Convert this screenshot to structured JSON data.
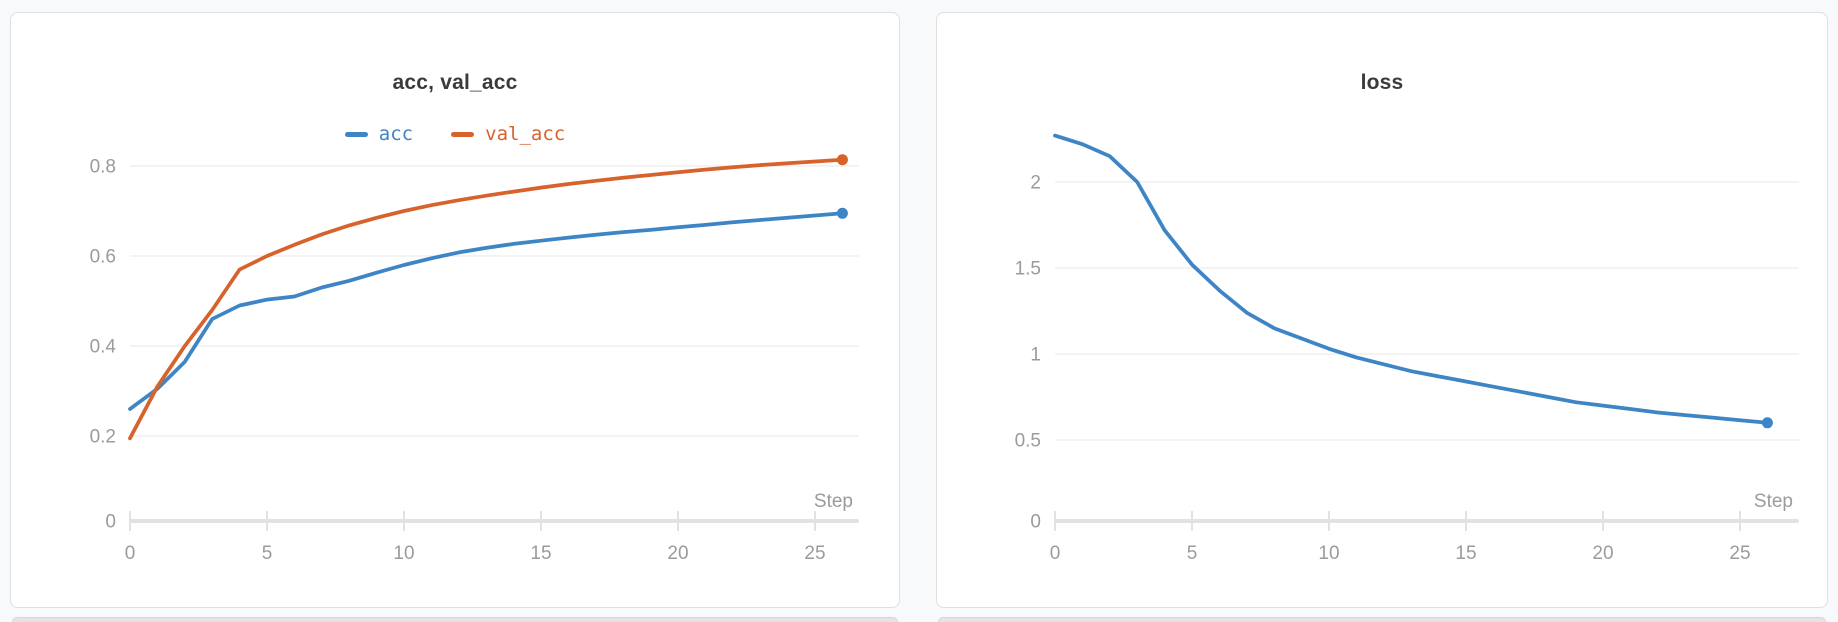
{
  "panel_colors": {
    "background": "#f8f9fa",
    "card": "#ffffff",
    "card_border": "#dfdfdf",
    "gridline": "#ececec",
    "axis_bar": "#e2e2e2",
    "tick_text": "#9b9b9b",
    "title_text": "#3b3b3b"
  },
  "chart_data": [
    {
      "type": "line",
      "title": "acc, val_acc",
      "xlabel": "Step",
      "grid": true,
      "legend_visible": true,
      "legend_position": "top-center",
      "x": [
        0,
        1,
        2,
        3,
        4,
        5,
        6,
        7,
        8,
        9,
        10,
        11,
        12,
        13,
        14,
        15,
        16,
        17,
        18,
        19,
        20,
        21,
        22,
        23,
        24,
        25,
        26
      ],
      "xticks": [
        0,
        5,
        10,
        15,
        20,
        25
      ],
      "xlim": [
        0,
        27
      ],
      "ylim": [
        0,
        0.9
      ],
      "yticks": [
        0,
        0.2,
        0.4,
        0.6,
        0.8
      ],
      "ytick_labels": [
        "0",
        "0.2",
        "0.4",
        "0.6",
        "0.8"
      ],
      "series": [
        {
          "name": "acc",
          "color": "#3e85c6",
          "end_marker": true,
          "values": [
            0.26,
            0.305,
            0.365,
            0.46,
            0.49,
            0.503,
            0.51,
            0.53,
            0.545,
            0.563,
            0.58,
            0.595,
            0.608,
            0.618,
            0.627,
            0.634,
            0.641,
            0.647,
            0.653,
            0.658,
            0.664,
            0.669,
            0.675,
            0.68,
            0.685,
            0.69,
            0.695
          ]
        },
        {
          "name": "val_acc",
          "color": "#d8622c",
          "end_marker": true,
          "values": [
            0.195,
            0.31,
            0.4,
            0.48,
            0.57,
            0.6,
            0.625,
            0.648,
            0.668,
            0.685,
            0.7,
            0.713,
            0.724,
            0.734,
            0.743,
            0.752,
            0.76,
            0.767,
            0.774,
            0.78,
            0.786,
            0.792,
            0.797,
            0.802,
            0.806,
            0.81,
            0.814
          ]
        }
      ]
    },
    {
      "type": "line",
      "title": "loss",
      "xlabel": "Step",
      "grid": true,
      "legend_visible": false,
      "x": [
        0,
        1,
        2,
        3,
        4,
        5,
        6,
        7,
        8,
        9,
        10,
        11,
        12,
        13,
        14,
        15,
        16,
        17,
        18,
        19,
        20,
        21,
        22,
        23,
        24,
        25,
        26
      ],
      "xticks": [
        0,
        5,
        10,
        15,
        20,
        25
      ],
      "xlim": [
        0,
        27
      ],
      "ylim": [
        0,
        2.45
      ],
      "yticks": [
        0,
        0.5,
        1,
        1.5,
        2
      ],
      "ytick_labels": [
        "0",
        "0.5",
        "1",
        "1.5",
        "2"
      ],
      "series": [
        {
          "name": "loss",
          "color": "#3e85c6",
          "end_marker": true,
          "values": [
            2.27,
            2.22,
            2.15,
            2.0,
            1.72,
            1.52,
            1.37,
            1.24,
            1.15,
            1.09,
            1.03,
            0.98,
            0.94,
            0.9,
            0.87,
            0.84,
            0.81,
            0.78,
            0.75,
            0.72,
            0.7,
            0.68,
            0.66,
            0.645,
            0.63,
            0.615,
            0.6
          ]
        }
      ]
    }
  ]
}
